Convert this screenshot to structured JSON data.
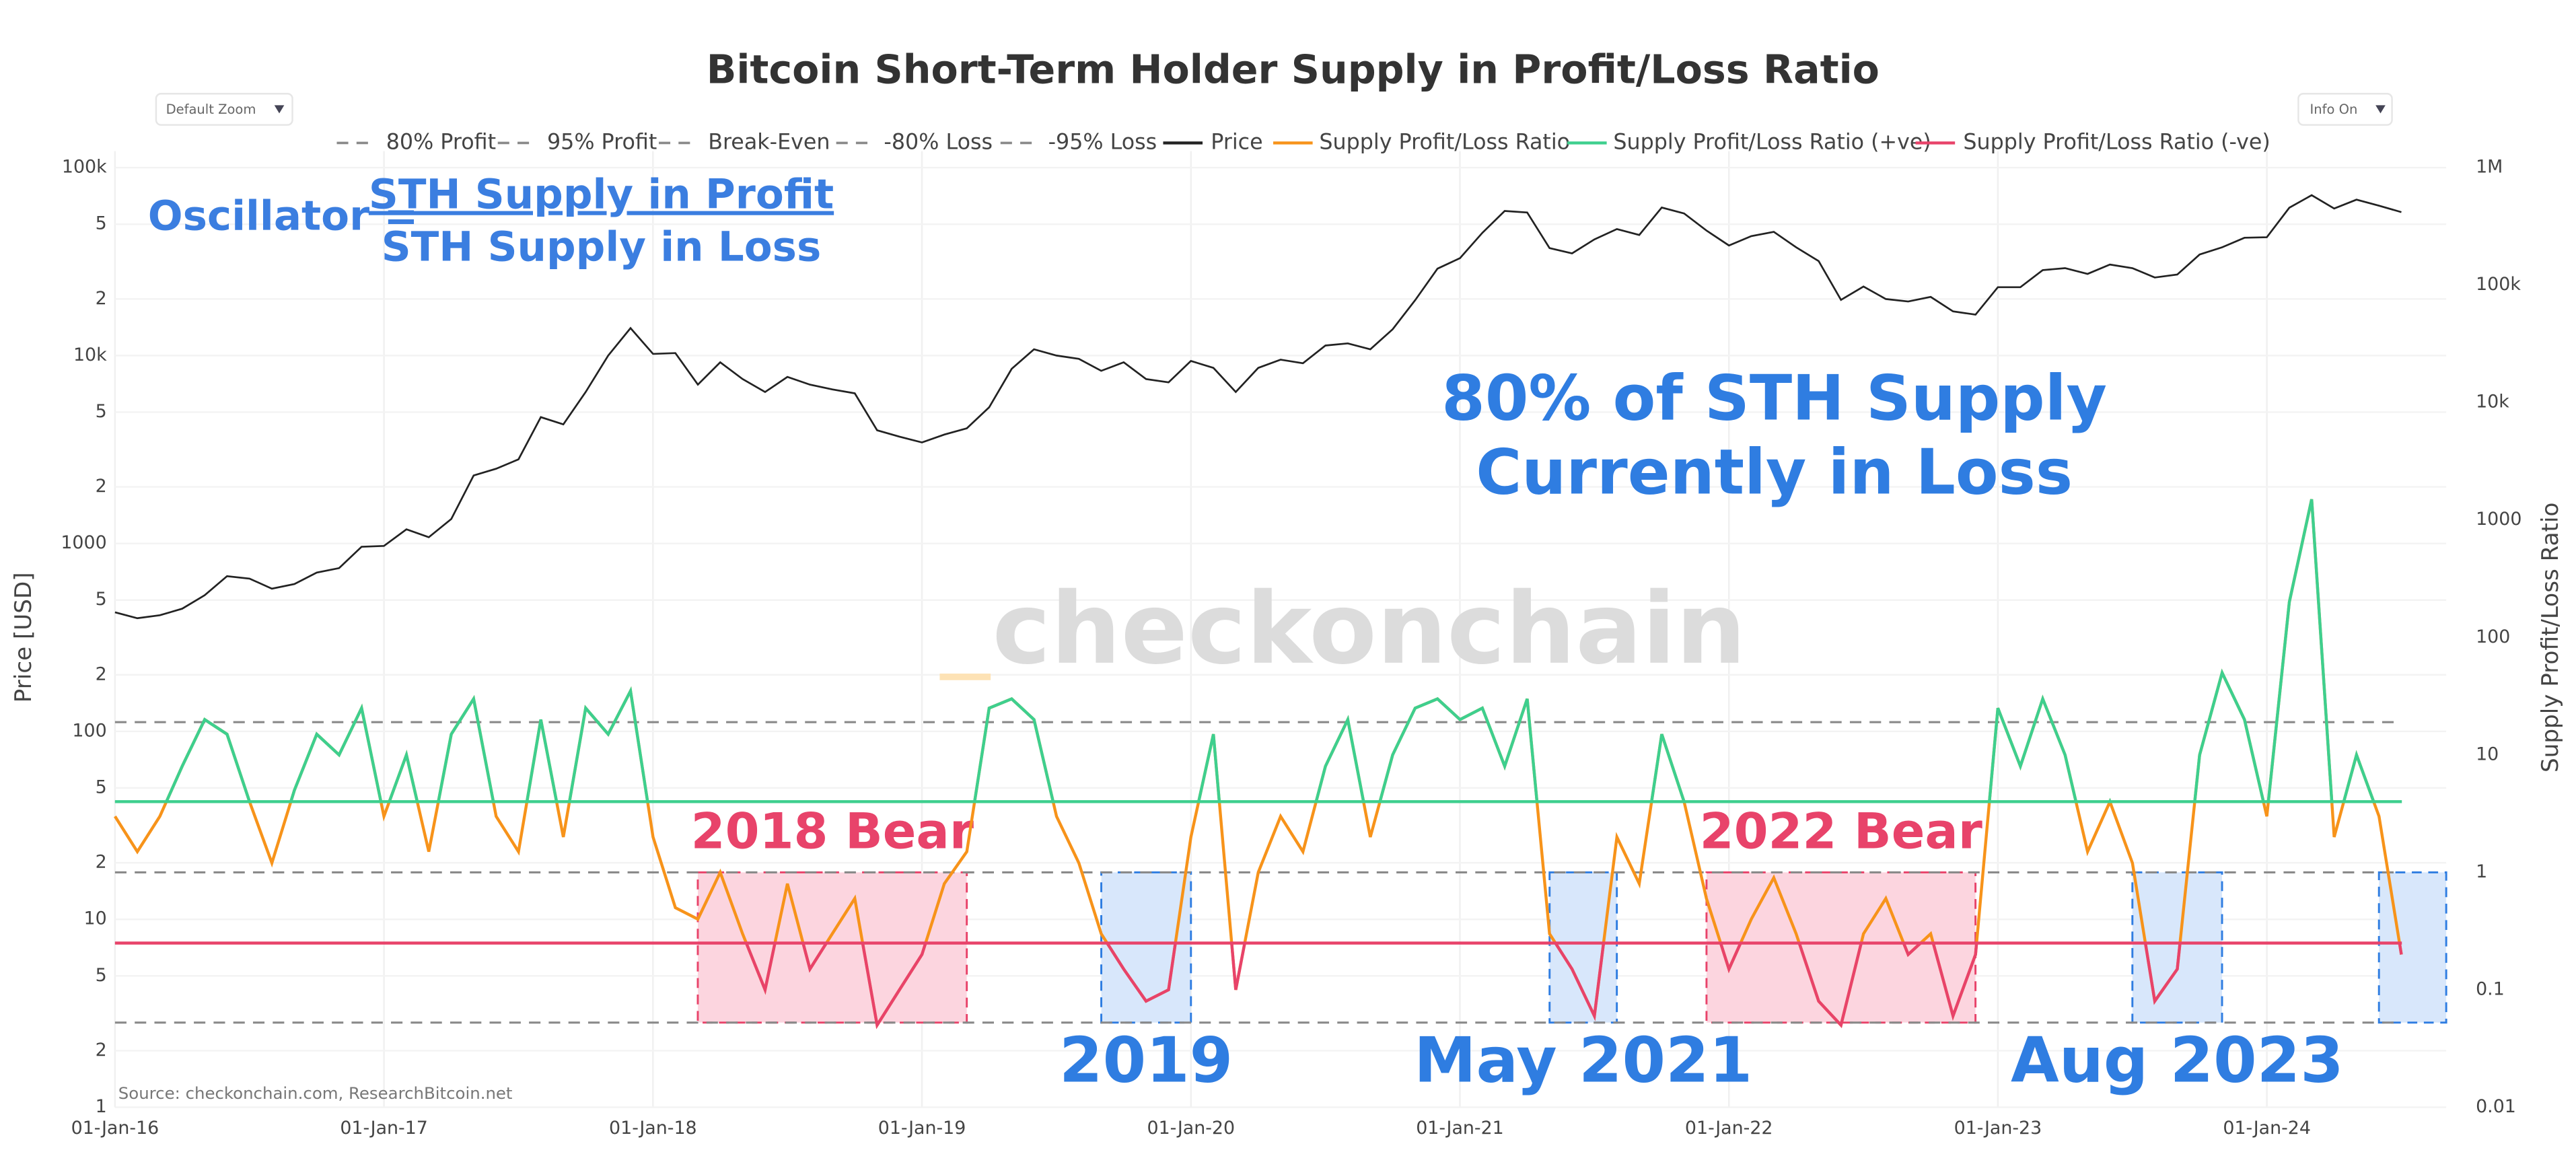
{
  "chart_data": {
    "type": "line",
    "title": "Bitcoin Short-Term Holder Supply in Profit/Loss Ratio",
    "controls": [
      "Default Zoom",
      "Info On"
    ],
    "y_label": "Price [USD]",
    "y2_label": "Supply Profit/Loss Ratio",
    "source": "Source: checkonchain.com, ResearchBitcoin.net",
    "watermark": "checkonchain",
    "formula": {
      "label": "Oscillator =",
      "numerator": "STH Supply in Profit",
      "denominator": "STH Supply in Loss"
    },
    "annotation": [
      "80% of STH Supply",
      "Currently in Loss"
    ],
    "log_y": true,
    "log_y2": true,
    "grid": true,
    "xlim": [
      "2016-01",
      "2024-09"
    ],
    "xticks": [
      {
        "value": "2016-01",
        "label": "01-Jan-16"
      },
      {
        "value": "2017-01",
        "label": "01-Jan-17"
      },
      {
        "value": "2018-01",
        "label": "01-Jan-18"
      },
      {
        "value": "2019-01",
        "label": "01-Jan-19"
      },
      {
        "value": "2020-01",
        "label": "01-Jan-20"
      },
      {
        "value": "2021-01",
        "label": "01-Jan-21"
      },
      {
        "value": "2022-01",
        "label": "01-Jan-22"
      },
      {
        "value": "2023-01",
        "label": "01-Jan-23"
      },
      {
        "value": "2024-01",
        "label": "01-Jan-24"
      }
    ],
    "ylim": [
      1,
      100000
    ],
    "yticks": [
      1,
      2,
      5,
      10,
      {
        "value": 20,
        "label": "2"
      },
      {
        "value": 50,
        "label": "5"
      },
      100,
      {
        "value": 200,
        "label": "2"
      },
      {
        "value": 500,
        "label": "5"
      },
      1000,
      {
        "value": 2000,
        "label": "2"
      },
      {
        "value": 5000,
        "label": "5"
      },
      {
        "value": 10000,
        "label": "10k"
      },
      {
        "value": 20000,
        "label": "2"
      },
      {
        "value": 50000,
        "label": "5"
      },
      {
        "value": 100000,
        "label": "100k"
      }
    ],
    "y2lim": [
      0.01,
      1000000
    ],
    "y2ticks": [
      0.01,
      0.1,
      1,
      10,
      100,
      1000,
      {
        "value": 10000,
        "label": "10k"
      },
      {
        "value": 100000,
        "label": "100k"
      },
      {
        "value": 1000000,
        "label": "1M"
      }
    ],
    "reference_lines": [
      {
        "name": "80% Profit",
        "value": 4
      },
      {
        "name": "95% Profit",
        "value": 19
      },
      {
        "name": "Break-Even",
        "value": 1
      },
      {
        "name": "-80% Loss",
        "value": 0.25
      },
      {
        "name": "-95% Loss",
        "value": 0.0526
      }
    ],
    "reference_color": "#8a8a8a",
    "x": [
      "2016-01",
      "2016-02",
      "2016-03",
      "2016-04",
      "2016-05",
      "2016-06",
      "2016-07",
      "2016-08",
      "2016-09",
      "2016-10",
      "2016-11",
      "2016-12",
      "2017-01",
      "2017-02",
      "2017-03",
      "2017-04",
      "2017-05",
      "2017-06",
      "2017-07",
      "2017-08",
      "2017-09",
      "2017-10",
      "2017-11",
      "2017-12",
      "2018-01",
      "2018-02",
      "2018-03",
      "2018-04",
      "2018-05",
      "2018-06",
      "2018-07",
      "2018-08",
      "2018-09",
      "2018-10",
      "2018-11",
      "2018-12",
      "2019-01",
      "2019-02",
      "2019-03",
      "2019-04",
      "2019-05",
      "2019-06",
      "2019-07",
      "2019-08",
      "2019-09",
      "2019-10",
      "2019-11",
      "2019-12",
      "2020-01",
      "2020-02",
      "2020-03",
      "2020-04",
      "2020-05",
      "2020-06",
      "2020-07",
      "2020-08",
      "2020-09",
      "2020-10",
      "2020-11",
      "2020-12",
      "2021-01",
      "2021-02",
      "2021-03",
      "2021-04",
      "2021-05",
      "2021-06",
      "2021-07",
      "2021-08",
      "2021-09",
      "2021-10",
      "2021-11",
      "2021-12",
      "2022-01",
      "2022-02",
      "2022-03",
      "2022-04",
      "2022-05",
      "2022-06",
      "2022-07",
      "2022-08",
      "2022-09",
      "2022-10",
      "2022-11",
      "2022-12",
      "2023-01",
      "2023-02",
      "2023-03",
      "2023-04",
      "2023-05",
      "2023-06",
      "2023-07",
      "2023-08",
      "2023-09",
      "2023-10",
      "2023-11",
      "2023-12",
      "2024-01",
      "2024-02",
      "2024-03",
      "2024-04",
      "2024-05",
      "2024-06",
      "2024-07"
    ],
    "series": [
      {
        "name": "Price",
        "color": "#222222",
        "axis": "y",
        "values": [
          430,
          400,
          415,
          450,
          530,
          670,
          650,
          575,
          608,
          700,
          740,
          960,
          970,
          1190,
          1080,
          1350,
          2300,
          2500,
          2800,
          4700,
          4300,
          6400,
          10000,
          14000,
          10200,
          10300,
          7000,
          9200,
          7500,
          6400,
          7700,
          7000,
          6600,
          6300,
          4000,
          3700,
          3450,
          3800,
          4100,
          5300,
          8500,
          10800,
          10000,
          9600,
          8300,
          9200,
          7500,
          7200,
          9350,
          8600,
          6400,
          8600,
          9500,
          9100,
          11300,
          11600,
          10800,
          13800,
          19700,
          29000,
          33000,
          45000,
          58800,
          57700,
          37300,
          35000,
          41500,
          47100,
          43800,
          61300,
          57000,
          46300,
          38500,
          43200,
          45500,
          37700,
          31800,
          19800,
          23300,
          20000,
          19400,
          20500,
          17200,
          16500,
          23100,
          23100,
          28500,
          29200,
          27200,
          30500,
          29200,
          26000,
          27000,
          34500,
          37700,
          42300,
          42600,
          61200,
          71300,
          60600,
          67500,
          62700,
          58000
        ]
      },
      {
        "name": "Supply Profit/Loss Ratio",
        "color": "#f7931a",
        "axis": "y2",
        "values": [
          3,
          1.5,
          3,
          8,
          20,
          15,
          4,
          1.2,
          5,
          15,
          10,
          25,
          3,
          10,
          1.5,
          15,
          30,
          3,
          1.5,
          20,
          2,
          25,
          15,
          35,
          2,
          0.5,
          0.4,
          1,
          0.3,
          0.1,
          0.8,
          0.15,
          0.3,
          0.6,
          0.05,
          0.1,
          0.2,
          0.8,
          1.5,
          25,
          30,
          20,
          3,
          1.2,
          0.3,
          0.15,
          0.08,
          0.1,
          2,
          15,
          0.1,
          1,
          3,
          1.5,
          8,
          20,
          2,
          10,
          25,
          30,
          20,
          25,
          8,
          30,
          0.3,
          0.15,
          0.06,
          2,
          0.8,
          15,
          4,
          0.6,
          0.15,
          0.4,
          0.9,
          0.3,
          0.08,
          0.05,
          0.3,
          0.6,
          0.2,
          0.3,
          0.06,
          0.2,
          25,
          8,
          30,
          10,
          1.5,
          4,
          1.2,
          0.08,
          0.15,
          10,
          50,
          20,
          3,
          200,
          1500,
          2,
          10,
          3,
          0.2
        ]
      },
      {
        "name": "Supply Profit/Loss Ratio (+ve)",
        "color": "#3ecf8e",
        "axis": "y2",
        "threshold": 4,
        "side": "above"
      },
      {
        "name": "Supply Profit/Loss Ratio (-ve)",
        "color": "#e8436a",
        "axis": "y2",
        "threshold": 0.25,
        "side": "below"
      }
    ],
    "boxes": [
      {
        "label": "2018 Bear",
        "from": "2018-03",
        "to": "2019-03",
        "ymin": 0.0526,
        "ymax": 1,
        "color": "#e8436a",
        "fill": "#fcd5df",
        "label_side": "above"
      },
      {
        "label": "2019",
        "from": "2019-09",
        "to": "2020-01",
        "ymin": 0.0526,
        "ymax": 1,
        "color": "#2f7de1",
        "fill": "#d8e7fb",
        "label_side": "below"
      },
      {
        "label": "May 2021",
        "from": "2021-05",
        "to": "2021-08",
        "ymin": 0.0526,
        "ymax": 1,
        "color": "#2f7de1",
        "fill": "#d8e7fb",
        "label_side": "below"
      },
      {
        "label": "2022 Bear",
        "from": "2021-12",
        "to": "2022-12",
        "ymin": 0.0526,
        "ymax": 1,
        "color": "#e8436a",
        "fill": "#fcd5df",
        "label_side": "above"
      },
      {
        "label": "Aug 2023",
        "from": "2023-07",
        "to": "2023-11",
        "ymin": 0.0526,
        "ymax": 1,
        "color": "#2f7de1",
        "fill": "#d8e7fb",
        "label_side": "below"
      },
      {
        "from": "2024-06",
        "to": "2024-09",
        "ymin": 0.0526,
        "ymax": 1,
        "color": "#2f7de1",
        "fill": "#d8e7fb"
      }
    ]
  }
}
